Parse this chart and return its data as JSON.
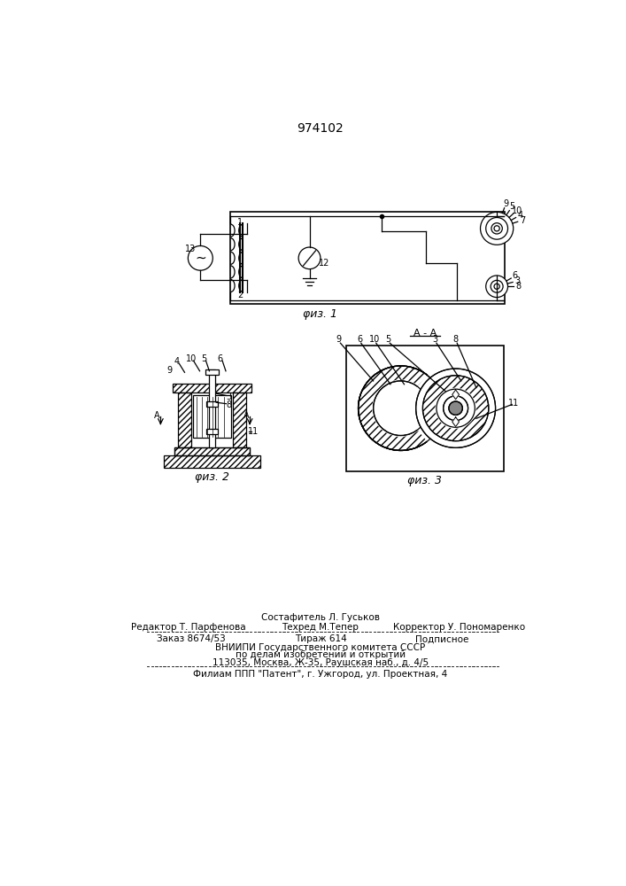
{
  "title": "974102",
  "bg_color": "#ffffff",
  "lc": "#000000",
  "fig1_caption": "φиз. 1",
  "fig2_caption": "φиз. 2",
  "fig3_caption": "φиз. 3",
  "AA_label": "A - A",
  "footer": [
    "Состафитель Л. Гуськов",
    "Редактор Т. Парфенова",
    "Техред М.Тепер",
    "Корректор У. Пономаренко",
    "Заказ 8674/53",
    "Тираж 614",
    "Подписное",
    "ВНИИПИ Государственного комитета СССР",
    "по делам изобретений и открытий",
    "113035, Москва, Ж-35, Раушская наб., д. 4/5",
    "Филиам ППП \"Патент\", г. Ужгород, ул. Проектная, 4"
  ]
}
